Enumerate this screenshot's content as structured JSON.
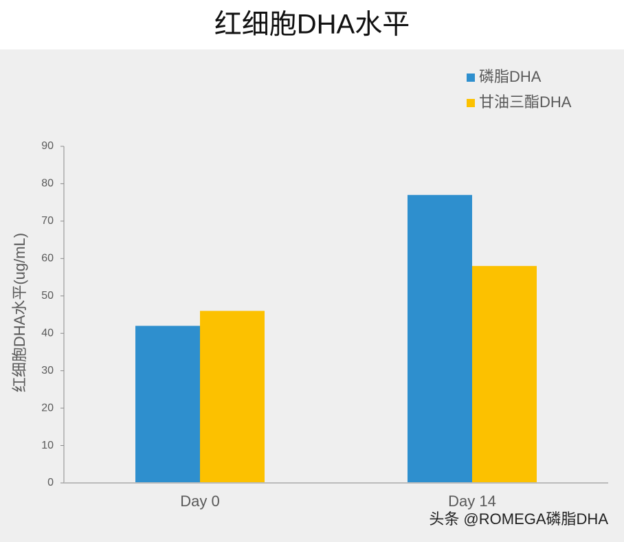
{
  "chart_data": {
    "type": "bar",
    "title": "红细胞DHA水平",
    "y_label": "红细胞DHA水平(ug/mL)",
    "categories": [
      "Day 0",
      "Day 14"
    ],
    "series": [
      {
        "name": "磷脂DHA",
        "color": "#2e8fce",
        "values": [
          42,
          77
        ]
      },
      {
        "name": "甘油三酯DHA",
        "color": "#fcc100",
        "values": [
          46,
          58
        ]
      }
    ],
    "ylim": [
      0,
      90
    ],
    "yticks": [
      0,
      10,
      20,
      30,
      40,
      50,
      60,
      70,
      80,
      90
    ],
    "legend": "top-right",
    "watermark": "头条 @ROMEGA磷脂DHA"
  }
}
